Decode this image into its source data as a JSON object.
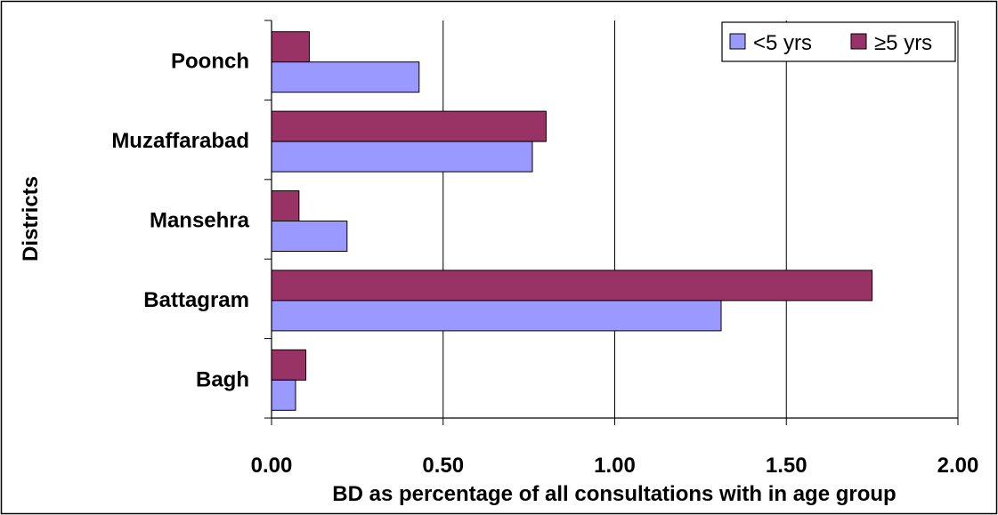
{
  "chart_data": {
    "type": "bar",
    "orientation": "horizontal",
    "categories": [
      "Bagh",
      "Battagram",
      "Mansehra",
      "Muzaffarabad",
      "Poonch"
    ],
    "series": [
      {
        "name": "<5 yrs",
        "color": "#9999ff",
        "values": [
          0.07,
          1.31,
          0.22,
          0.76,
          0.43
        ]
      },
      {
        "name": "≥5 yrs",
        "color": "#993366",
        "values": [
          0.1,
          1.75,
          0.08,
          0.8,
          0.11
        ]
      }
    ],
    "xlabel": "BD as percentage of all consultations with in age group",
    "ylabel": "Districts",
    "xlim": [
      0,
      2
    ],
    "xticks": [
      "0.00",
      "0.50",
      "1.00",
      "1.50",
      "2.00"
    ],
    "xtick_values": [
      0,
      0.5,
      1,
      1.5,
      2
    ],
    "grid": "vertical",
    "legend_position": "top-right"
  }
}
